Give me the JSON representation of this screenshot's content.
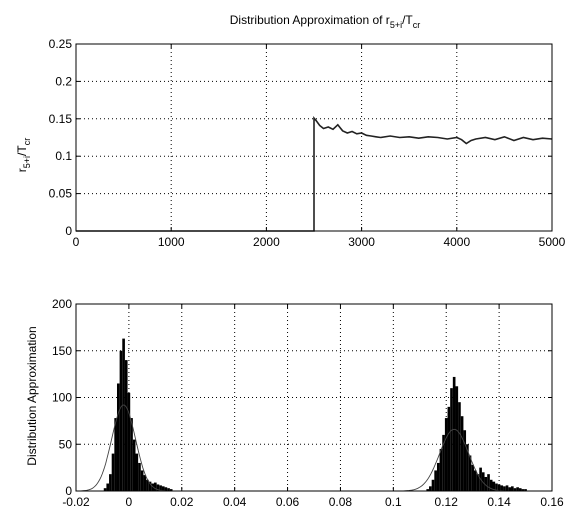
{
  "chart_data": [
    {
      "type": "line",
      "title": "Distribution Approximation of r5+i/Tcr",
      "title_parts": {
        "main": "Distribution Approximation of r",
        "sub1": "5+i",
        "mid": "/T",
        "sub2": "cr"
      },
      "ylabel": "r5+i/Tcr",
      "ylabel_parts": {
        "main": "r",
        "sub1": "5+i",
        "mid": "/T",
        "sub2": "cr"
      },
      "xlabel": "",
      "xlim": [
        0,
        5000
      ],
      "ylim": [
        0,
        0.25
      ],
      "xticks": [
        "0",
        "1000",
        "2000",
        "3000",
        "4000",
        "5000"
      ],
      "yticks": [
        "0",
        "0.05",
        "0.1",
        "0.15",
        "0.2",
        "0.25"
      ],
      "grid": true,
      "series": [
        {
          "x": [
            0,
            2500,
            2500,
            2520,
            2560,
            2600,
            2650,
            2700,
            2750,
            2800,
            2850,
            2900,
            2950,
            3000,
            3050,
            3100,
            3150,
            3200,
            3300,
            3400,
            3500,
            3600,
            3700,
            3800,
            3900,
            4000,
            4050,
            4100,
            4150,
            4200,
            4300,
            4400,
            4500,
            4600,
            4700,
            4800,
            4900,
            5000
          ],
          "y": [
            0,
            0,
            0.151,
            0.148,
            0.141,
            0.137,
            0.139,
            0.136,
            0.142,
            0.134,
            0.131,
            0.133,
            0.13,
            0.131,
            0.128,
            0.127,
            0.126,
            0.125,
            0.127,
            0.125,
            0.126,
            0.124,
            0.126,
            0.125,
            0.123,
            0.125,
            0.122,
            0.117,
            0.121,
            0.123,
            0.125,
            0.122,
            0.126,
            0.121,
            0.125,
            0.122,
            0.124,
            0.123
          ],
          "color": "#222222"
        }
      ]
    },
    {
      "type": "bar",
      "title": "",
      "xlabel": "",
      "ylabel": "Distribution Approximation",
      "xlim": [
        -0.02,
        0.16
      ],
      "ylim": [
        0,
        200
      ],
      "xticks": [
        "-0.02",
        "0",
        "0.02",
        "0.04",
        "0.06",
        "0.08",
        "0.1",
        "0.12",
        "0.14",
        "0.16"
      ],
      "yticks": [
        "0",
        "50",
        "100",
        "150",
        "200"
      ],
      "grid": true,
      "histogram": {
        "bin_width": 0.001,
        "bins": [
          {
            "x": -0.009,
            "v": 3
          },
          {
            "x": -0.008,
            "v": 8
          },
          {
            "x": -0.007,
            "v": 18
          },
          {
            "x": -0.006,
            "v": 40
          },
          {
            "x": -0.005,
            "v": 78
          },
          {
            "x": -0.004,
            "v": 115
          },
          {
            "x": -0.003,
            "v": 150
          },
          {
            "x": -0.002,
            "v": 163
          },
          {
            "x": -0.001,
            "v": 140
          },
          {
            "x": 0.0,
            "v": 105
          },
          {
            "x": 0.001,
            "v": 78
          },
          {
            "x": 0.002,
            "v": 55
          },
          {
            "x": 0.003,
            "v": 40
          },
          {
            "x": 0.004,
            "v": 30
          },
          {
            "x": 0.005,
            "v": 22
          },
          {
            "x": 0.006,
            "v": 17
          },
          {
            "x": 0.007,
            "v": 12
          },
          {
            "x": 0.008,
            "v": 10
          },
          {
            "x": 0.009,
            "v": 8
          },
          {
            "x": 0.01,
            "v": 9
          },
          {
            "x": 0.011,
            "v": 7
          },
          {
            "x": 0.012,
            "v": 6
          },
          {
            "x": 0.013,
            "v": 5
          },
          {
            "x": 0.014,
            "v": 4
          },
          {
            "x": 0.015,
            "v": 3
          },
          {
            "x": 0.016,
            "v": 2
          },
          {
            "x": 0.113,
            "v": 2
          },
          {
            "x": 0.114,
            "v": 5
          },
          {
            "x": 0.115,
            "v": 12
          },
          {
            "x": 0.116,
            "v": 22
          },
          {
            "x": 0.117,
            "v": 30
          },
          {
            "x": 0.118,
            "v": 45
          },
          {
            "x": 0.119,
            "v": 60
          },
          {
            "x": 0.12,
            "v": 78
          },
          {
            "x": 0.121,
            "v": 90
          },
          {
            "x": 0.122,
            "v": 110
          },
          {
            "x": 0.123,
            "v": 122
          },
          {
            "x": 0.124,
            "v": 112
          },
          {
            "x": 0.125,
            "v": 95
          },
          {
            "x": 0.126,
            "v": 80
          },
          {
            "x": 0.127,
            "v": 65
          },
          {
            "x": 0.128,
            "v": 50
          },
          {
            "x": 0.129,
            "v": 38
          },
          {
            "x": 0.13,
            "v": 28
          },
          {
            "x": 0.131,
            "v": 22
          },
          {
            "x": 0.132,
            "v": 18
          },
          {
            "x": 0.133,
            "v": 25
          },
          {
            "x": 0.134,
            "v": 20
          },
          {
            "x": 0.135,
            "v": 15
          },
          {
            "x": 0.136,
            "v": 18
          },
          {
            "x": 0.137,
            "v": 12
          },
          {
            "x": 0.138,
            "v": 10
          },
          {
            "x": 0.139,
            "v": 8
          },
          {
            "x": 0.14,
            "v": 7
          },
          {
            "x": 0.141,
            "v": 6
          },
          {
            "x": 0.142,
            "v": 5
          },
          {
            "x": 0.143,
            "v": 6
          },
          {
            "x": 0.144,
            "v": 4
          },
          {
            "x": 0.145,
            "v": 5
          },
          {
            "x": 0.146,
            "v": 3
          },
          {
            "x": 0.147,
            "v": 4
          },
          {
            "x": 0.148,
            "v": 3
          },
          {
            "x": 0.149,
            "v": 2
          },
          {
            "x": 0.15,
            "v": 2
          }
        ],
        "color": "#000000"
      },
      "fit_curves": [
        {
          "mean": -0.002,
          "peak": 92,
          "sigma": 0.0045,
          "color": "#444444"
        },
        {
          "mean": 0.123,
          "peak": 66,
          "sigma": 0.0055,
          "color": "#444444"
        }
      ]
    }
  ]
}
